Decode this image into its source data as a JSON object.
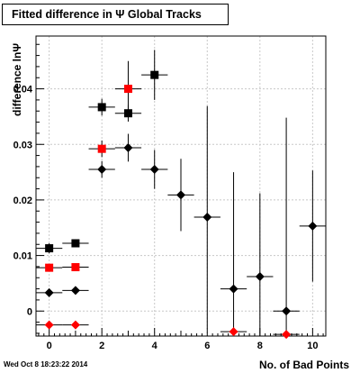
{
  "title": "Fitted difference in Ψ   Global Tracks",
  "timestamp": "Wed Oct  8 18:23:22 2014",
  "colors": {
    "black_series": "#000000",
    "red_series": "#ff0000",
    "grid": "#c8c8c8"
  },
  "chart_data": {
    "type": "scatter",
    "xlabel": "No. of Bad Points",
    "ylabel": "difference lnΨ",
    "xlim": [
      -0.5,
      10.5
    ],
    "ylim": [
      -0.0045,
      0.0495
    ],
    "xticks": [
      0,
      2,
      4,
      6,
      8,
      10
    ],
    "yticks": [
      0,
      0.01,
      0.02,
      0.03,
      0.04
    ],
    "ytick_labels": [
      "0",
      "0.01",
      "0.02",
      "0.03",
      "0.04"
    ],
    "grid": true,
    "legend": "none",
    "series": [
      {
        "marker": "square",
        "color": "#000000",
        "points": [
          {
            "x": 0,
            "y": 0.0113,
            "yerr": 0.0009
          },
          {
            "x": 1,
            "y": 0.0122,
            "yerr": 0.0007
          },
          {
            "x": 2,
            "y": 0.0367,
            "yerr": 0.0015
          },
          {
            "x": 3,
            "y": 0.0356,
            "yerr": 0.0015
          },
          {
            "x": 4,
            "y": 0.0425,
            "yerr": 0.0045
          }
        ]
      },
      {
        "marker": "square",
        "color": "#ff0000",
        "points": [
          {
            "x": 0,
            "y": 0.0078,
            "yerr": 0.0003
          },
          {
            "x": 1,
            "y": 0.0079,
            "yerr": 0.0003
          },
          {
            "x": 2,
            "y": 0.0292,
            "yerr": 0.0015
          },
          {
            "x": 3,
            "y": 0.04,
            "yerr": 0.005
          }
        ]
      },
      {
        "marker": "diamond",
        "color": "#000000",
        "points": [
          {
            "x": 0,
            "y": 0.0033,
            "yerr": 0.0002
          },
          {
            "x": 1,
            "y": 0.0037,
            "yerr": 0.0002
          },
          {
            "x": 2,
            "y": 0.0255,
            "yerr": 0.0015
          },
          {
            "x": 3,
            "y": 0.0294,
            "yerr": 0.0025
          },
          {
            "x": 4,
            "y": 0.0255,
            "yerr": 0.0035
          },
          {
            "x": 5,
            "y": 0.0209,
            "yerr": 0.0065
          },
          {
            "x": 6,
            "y": 0.0169,
            "yerr": 0.02
          },
          {
            "x": 7,
            "y": 0.004,
            "yerr": 0.021
          },
          {
            "x": 8,
            "y": 0.0062,
            "yerr": 0.015
          },
          {
            "x": 9,
            "y": 0.0,
            "yerr": 0.0
          },
          {
            "x": 10,
            "y": 0.0153,
            "yerr": 0.01
          }
        ]
      },
      {
        "marker": "diamond",
        "color": "#ff0000",
        "points": [
          {
            "x": 0,
            "y": -0.0025,
            "yerr": 0.0
          },
          {
            "x": 1,
            "y": -0.0025,
            "yerr": 0.0
          },
          {
            "x": 7,
            "y": -0.0037,
            "yerr": 0.0
          },
          {
            "x": 9,
            "y": -0.0042,
            "yerr": 0.039
          }
        ]
      }
    ]
  }
}
